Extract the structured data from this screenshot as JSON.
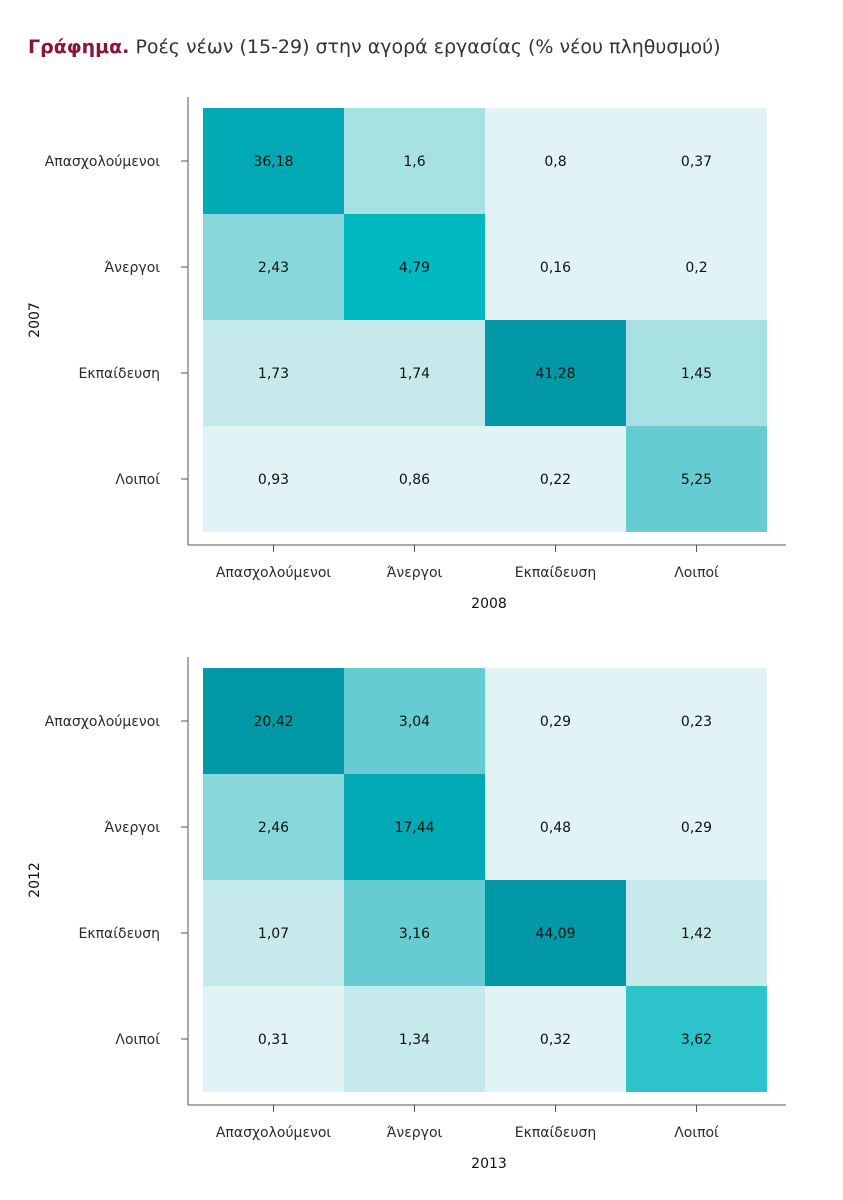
{
  "title": {
    "lead": "Γράφημα.",
    "rest": "Ροές νέων (15-29) στην αγορά εργασίας (% νέου πληθυσμού)"
  },
  "colors": {
    "title_lead": "#8a1538",
    "scale": [
      "#e2f3f5",
      "#c6eaec",
      "#a8e1e4",
      "#88d7db",
      "#65cdd2",
      "#2cc3ca",
      "#00b8c0",
      "#00a9b4",
      "#0098a4"
    ]
  },
  "chart_data": [
    {
      "type": "heatmap",
      "ylabel": "2007",
      "xlabel": "2008",
      "rows": [
        "Απασχολούμενοι",
        "Άνεργοι",
        "Εκπαίδευση",
        "Λοιποί"
      ],
      "cols": [
        "Απασχολούμενοι",
        "Άνεργοι",
        "Εκπαίδευση",
        "Λοιποί"
      ],
      "values": [
        [
          36.18,
          1.6,
          0.8,
          0.37
        ],
        [
          2.43,
          4.79,
          0.16,
          0.2
        ],
        [
          1.73,
          1.74,
          41.28,
          1.45
        ],
        [
          0.93,
          0.86,
          0.22,
          5.25
        ]
      ],
      "labels": [
        [
          "36,18",
          "1,6",
          "0,8",
          "0,37"
        ],
        [
          "2,43",
          "4,79",
          "0,16",
          "0,2"
        ],
        [
          "1,73",
          "1,74",
          "41,28",
          "1,45"
        ],
        [
          "0,93",
          "0,86",
          "0,22",
          "5,25"
        ]
      ],
      "color_levels": [
        [
          7,
          2,
          0,
          0
        ],
        [
          3,
          6,
          0,
          0
        ],
        [
          1,
          1,
          8,
          2
        ],
        [
          0,
          0,
          0,
          4
        ]
      ]
    },
    {
      "type": "heatmap",
      "ylabel": "2012",
      "xlabel": "2013",
      "rows": [
        "Απασχολούμενοι",
        "Άνεργοι",
        "Εκπαίδευση",
        "Λοιποί"
      ],
      "cols": [
        "Απασχολούμενοι",
        "Άνεργοι",
        "Εκπαίδευση",
        "Λοιποί"
      ],
      "values": [
        [
          20.42,
          3.04,
          0.29,
          0.23
        ],
        [
          2.46,
          17.44,
          0.48,
          0.29
        ],
        [
          1.07,
          3.16,
          44.09,
          1.42
        ],
        [
          0.31,
          1.34,
          0.32,
          3.62
        ]
      ],
      "labels": [
        [
          "20,42",
          "3,04",
          "0,29",
          "0,23"
        ],
        [
          "2,46",
          "17,44",
          "0,48",
          "0,29"
        ],
        [
          "1,07",
          "3,16",
          "44,09",
          "1,42"
        ],
        [
          "0,31",
          "1,34",
          "0,32",
          "3,62"
        ]
      ],
      "color_levels": [
        [
          8,
          4,
          0,
          0
        ],
        [
          3,
          7,
          0,
          0
        ],
        [
          1,
          4,
          8,
          1
        ],
        [
          0,
          1,
          0,
          5
        ]
      ]
    }
  ]
}
